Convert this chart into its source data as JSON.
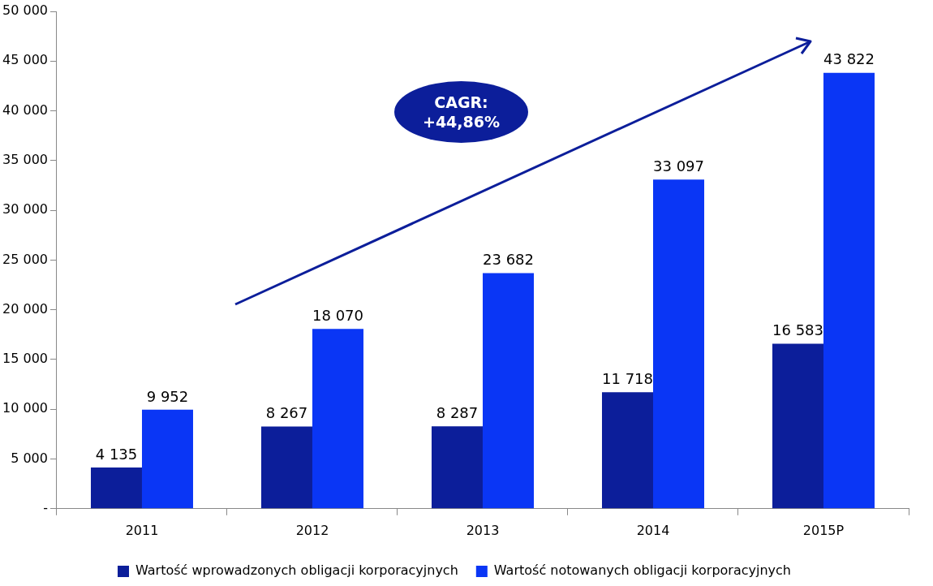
{
  "chart_data": {
    "type": "bar",
    "categories": [
      "2011",
      "2012",
      "2013",
      "2014",
      "2015P"
    ],
    "series": [
      {
        "name": "Wartość wprowadzonych obligacji korporacyjnych",
        "color": "#0c1e9a",
        "values": [
          4135,
          8267,
          8287,
          11718,
          16583
        ],
        "value_labels": [
          "4 135",
          "8 267",
          "8 287",
          "11 718",
          "16 583"
        ]
      },
      {
        "name": "Wartość notowanych obligacji korporacyjnych",
        "color": "#0a36f5",
        "values": [
          9952,
          18070,
          23682,
          33097,
          43822
        ],
        "value_labels": [
          "9 952",
          "18 070",
          "23 682",
          "33 097",
          "43 822"
        ]
      }
    ],
    "ylim": [
      0,
      50000
    ],
    "yticks": [
      {
        "value": 0,
        "label": "-"
      },
      {
        "value": 5000,
        "label": "5 000"
      },
      {
        "value": 10000,
        "label": "10 000"
      },
      {
        "value": 15000,
        "label": "15 000"
      },
      {
        "value": 20000,
        "label": "20 000"
      },
      {
        "value": 25000,
        "label": "25 000"
      },
      {
        "value": 30000,
        "label": "30 000"
      },
      {
        "value": 35000,
        "label": "35 000"
      },
      {
        "value": 40000,
        "label": "40 000"
      },
      {
        "value": 45000,
        "label": "45 000"
      },
      {
        "value": 50000,
        "label": "50 000"
      }
    ],
    "annotations": [
      "CAGR:\n+44,86%"
    ],
    "grid": false,
    "legend": "bottom"
  }
}
